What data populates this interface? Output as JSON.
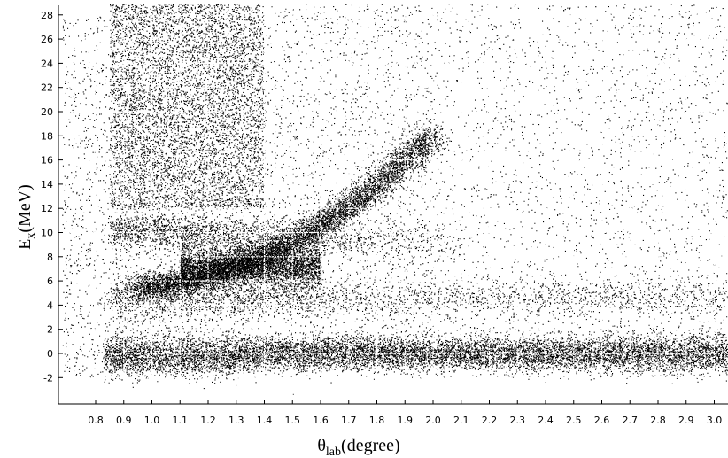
{
  "chart_data": {
    "type": "scatter",
    "title": "",
    "xlabel": {
      "main": "θ",
      "sub": "lab",
      "rest": "(degree)"
    },
    "ylabel": {
      "main": "E",
      "sub": "x",
      "rest": "(MeV)"
    },
    "xlim": [
      0.8,
      3.0
    ],
    "ylim": [
      -2,
      28
    ],
    "x_ticks": [
      "0.8",
      "0.9",
      "1.0",
      "1.1",
      "1.2",
      "1.3",
      "1.4",
      "1.5",
      "1.6",
      "1.7",
      "1.8",
      "1.9",
      "2.0",
      "2.1",
      "2.2",
      "2.3",
      "2.4",
      "2.5",
      "2.6",
      "2.7",
      "2.8",
      "2.9",
      "3.0"
    ],
    "y_ticks": [
      "28",
      "26",
      "24",
      "22",
      "20",
      "18",
      "16",
      "14",
      "12",
      "10",
      "8",
      "6",
      "4",
      "2",
      "0",
      "-2"
    ],
    "grid": true,
    "legend": "none",
    "marker_color": "#000000",
    "grid_color": "#ffffff",
    "series": [
      {
        "density": "very high",
        "points": [
          [
            0.9,
            0.0
          ],
          [
            1.0,
            -0.5
          ],
          [
            1.2,
            0.2
          ],
          [
            1.5,
            0.0
          ],
          [
            1.8,
            0.1
          ],
          [
            2.1,
            -0.1
          ],
          [
            2.4,
            0.0
          ],
          [
            2.7,
            -0.2
          ],
          [
            3.0,
            0.3
          ]
        ]
      },
      {
        "density": "high",
        "points": [
          [
            0.9,
            4.5
          ],
          [
            1.2,
            4.8
          ],
          [
            1.5,
            4.6
          ],
          [
            1.9,
            4.4
          ],
          [
            2.3,
            4.6
          ],
          [
            2.7,
            4.8
          ],
          [
            3.0,
            4.5
          ]
        ]
      },
      {
        "density": "medium",
        "points": [
          [
            1.0,
            5.8
          ],
          [
            1.2,
            6.5
          ],
          [
            1.4,
            8.0
          ],
          [
            1.6,
            10.0
          ],
          [
            1.7,
            12.0
          ],
          [
            1.8,
            14.0
          ],
          [
            1.9,
            16.0
          ]
        ]
      },
      {
        "density": "medium",
        "points": [
          [
            0.9,
            10.5
          ],
          [
            1.2,
            10.0
          ],
          [
            1.5,
            9.5
          ],
          [
            1.8,
            9.0
          ],
          [
            2.0,
            8.8
          ]
        ]
      },
      {
        "density": "low",
        "points": [
          [
            0.9,
            27.0
          ],
          [
            1.0,
            20.0
          ],
          [
            1.2,
            15.0
          ],
          [
            1.5,
            24.0
          ],
          [
            2.0,
            18.0
          ],
          [
            2.5,
            12.0
          ],
          [
            3.0,
            22.0
          ]
        ]
      }
    ]
  }
}
